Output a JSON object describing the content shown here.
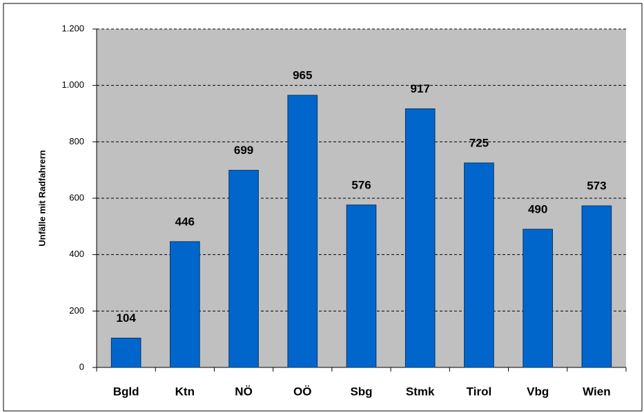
{
  "chart_data": {
    "type": "bar",
    "y_label": "Unfälle mit Radfahrern",
    "categories": [
      "Bgld",
      "Ktn",
      "NÖ",
      "OÖ",
      "Sbg",
      "Stmk",
      "Tirol",
      "Vbg",
      "Wien"
    ],
    "values": [
      104,
      446,
      699,
      965,
      576,
      917,
      725,
      490,
      573
    ],
    "color": "#0066cc",
    "ylim": [
      0,
      1200
    ],
    "yticks": [
      0,
      200,
      400,
      600,
      800,
      {
        "value": 1000,
        "label": "1.000"
      },
      {
        "value": 1200,
        "label": "1.200"
      }
    ],
    "grid": true
  }
}
